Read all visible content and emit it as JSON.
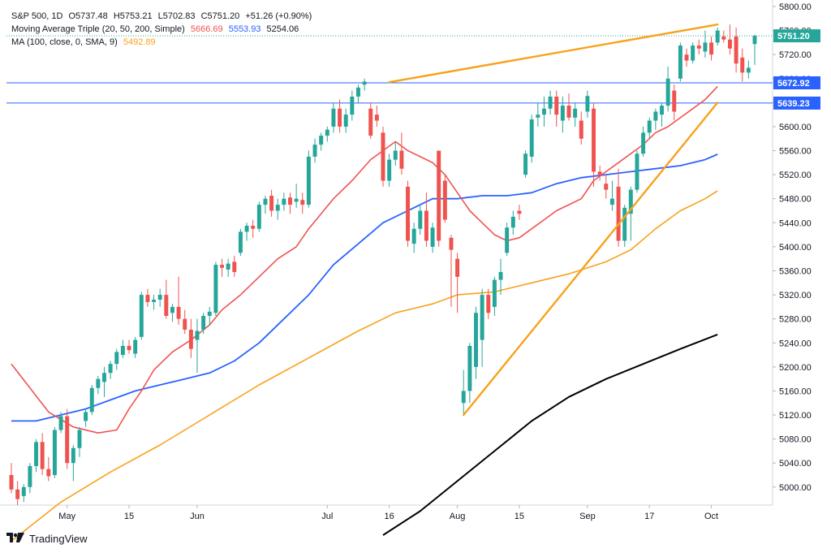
{
  "legend": {
    "symbol": "S&P 500, 1D",
    "open": "O5737.48",
    "high": "H5753.21",
    "low": "L5702.83",
    "close": "C5751.20",
    "change": "+51.26 (+0.90%)",
    "ma_triple_label": "Moving Average Triple (20, 50, 200, Simple)",
    "ma_triple_v1": "5666.69",
    "ma_triple_v2": "5553.93",
    "ma_triple_v3": "5254.06",
    "ma_label": "MA (100, close, 0, SMA, 9)",
    "ma_value": "5492.89"
  },
  "branding": {
    "text": "TradingView"
  },
  "colors": {
    "up": "#26a69a",
    "down": "#ef5350",
    "ma20": "#ef5350",
    "ma50": "#2962ff",
    "ma100": "#f7a21b",
    "ma200": "#000000",
    "trend": "#f7a21b",
    "hline": "#2962ff",
    "price_badge": "#26a69a",
    "level_badge": "#2962ff"
  },
  "chart_data": {
    "type": "candlestick",
    "ylim": [
      4970,
      5800
    ],
    "y_ticks": [
      "5800.00",
      "5760.00",
      "5720.00",
      "5680.00",
      "5640.00",
      "5600.00",
      "5560.00",
      "5520.00",
      "5480.00",
      "5440.00",
      "5400.00",
      "5360.00",
      "5320.00",
      "5280.00",
      "5240.00",
      "5200.00",
      "5160.00",
      "5120.00",
      "5080.00",
      "5040.00",
      "5000.00"
    ],
    "x_ticks": [
      {
        "label": "May",
        "index": 9
      },
      {
        "label": "15",
        "index": 19
      },
      {
        "label": "Jun",
        "index": 30
      },
      {
        "label": "Jul",
        "index": 51
      },
      {
        "label": "16",
        "index": 61
      },
      {
        "label": "Aug",
        "index": 72
      },
      {
        "label": "15",
        "index": 82
      },
      {
        "label": "Sep",
        "index": 93
      },
      {
        "label": "17",
        "index": 103
      },
      {
        "label": "Oct",
        "index": 113
      }
    ],
    "price_label": "5751.20",
    "levels": [
      {
        "value": 5672.92,
        "label": "5672.92"
      },
      {
        "value": 5639.23,
        "label": "5639.23"
      }
    ],
    "candles": [
      [
        5020,
        5040,
        4990,
        4996
      ],
      [
        4996,
        5010,
        4970,
        4980
      ],
      [
        4985,
        5005,
        4975,
        5000
      ],
      [
        5000,
        5040,
        4990,
        5035
      ],
      [
        5035,
        5080,
        5025,
        5075
      ],
      [
        5075,
        5090,
        5020,
        5030
      ],
      [
        5030,
        5050,
        5010,
        5018
      ],
      [
        5020,
        5100,
        5015,
        5095
      ],
      [
        5095,
        5125,
        5090,
        5118
      ],
      [
        5118,
        5130,
        5030,
        5040
      ],
      [
        5040,
        5070,
        5010,
        5065
      ],
      [
        5065,
        5100,
        5050,
        5095
      ],
      [
        5110,
        5130,
        5100,
        5125
      ],
      [
        5125,
        5170,
        5120,
        5165
      ],
      [
        5165,
        5185,
        5155,
        5180
      ],
      [
        5175,
        5200,
        5150,
        5190
      ],
      [
        5190,
        5210,
        5180,
        5205
      ],
      [
        5205,
        5230,
        5195,
        5225
      ],
      [
        5220,
        5245,
        5215,
        5235
      ],
      [
        5235,
        5245,
        5222,
        5228
      ],
      [
        5222,
        5250,
        5215,
        5245
      ],
      [
        5250,
        5325,
        5245,
        5320
      ],
      [
        5320,
        5330,
        5300,
        5308
      ],
      [
        5308,
        5320,
        5295,
        5312
      ],
      [
        5312,
        5330,
        5300,
        5320
      ],
      [
        5320,
        5345,
        5280,
        5285
      ],
      [
        5290,
        5305,
        5275,
        5300
      ],
      [
        5300,
        5350,
        5270,
        5280
      ],
      [
        5280,
        5295,
        5255,
        5262
      ],
      [
        5262,
        5280,
        5215,
        5230
      ],
      [
        5245,
        5280,
        5190,
        5260
      ],
      [
        5262,
        5290,
        5255,
        5285
      ],
      [
        5285,
        5300,
        5270,
        5292
      ],
      [
        5290,
        5375,
        5285,
        5370
      ],
      [
        5370,
        5380,
        5350,
        5365
      ],
      [
        5362,
        5380,
        5350,
        5372
      ],
      [
        5375,
        5385,
        5350,
        5358
      ],
      [
        5390,
        5430,
        5385,
        5425
      ],
      [
        5425,
        5440,
        5410,
        5435
      ],
      [
        5435,
        5445,
        5415,
        5430
      ],
      [
        5430,
        5475,
        5425,
        5470
      ],
      [
        5470,
        5485,
        5455,
        5480
      ],
      [
        5485,
        5495,
        5450,
        5460
      ],
      [
        5460,
        5480,
        5445,
        5470
      ],
      [
        5470,
        5490,
        5460,
        5480
      ],
      [
        5482,
        5490,
        5455,
        5470
      ],
      [
        5475,
        5505,
        5465,
        5480
      ],
      [
        5478,
        5490,
        5455,
        5470
      ],
      [
        5470,
        5560,
        5465,
        5550
      ],
      [
        5550,
        5580,
        5540,
        5570
      ],
      [
        5570,
        5590,
        5560,
        5585
      ],
      [
        5585,
        5600,
        5575,
        5595
      ],
      [
        5600,
        5640,
        5590,
        5630
      ],
      [
        5630,
        5645,
        5590,
        5600
      ],
      [
        5600,
        5630,
        5590,
        5620
      ],
      [
        5620,
        5660,
        5610,
        5650
      ],
      [
        5650,
        5670,
        5640,
        5665
      ],
      [
        5670,
        5680,
        5660,
        5675
      ],
      [
        5630,
        5640,
        5580,
        5585
      ],
      [
        5620,
        5635,
        5600,
        5610
      ],
      [
        5590,
        5600,
        5500,
        5510
      ],
      [
        5510,
        5555,
        5500,
        5545
      ],
      [
        5545,
        5575,
        5535,
        5560
      ],
      [
        5560,
        5590,
        5520,
        5530
      ],
      [
        5500,
        5510,
        5400,
        5410
      ],
      [
        5405,
        5440,
        5390,
        5430
      ],
      [
        5430,
        5470,
        5420,
        5460
      ],
      [
        5460,
        5490,
        5400,
        5410
      ],
      [
        5400,
        5440,
        5390,
        5432
      ],
      [
        5560,
        5560,
        5400,
        5410
      ],
      [
        5510,
        5520,
        5440,
        5445
      ],
      [
        5415,
        5420,
        5300,
        5395
      ],
      [
        5380,
        5390,
        5290,
        5350
      ],
      [
        5140,
        5195,
        5120,
        5160
      ],
      [
        5160,
        5240,
        5140,
        5235
      ],
      [
        5200,
        5300,
        5180,
        5290
      ],
      [
        5245,
        5330,
        5200,
        5320
      ],
      [
        5320,
        5330,
        5280,
        5290
      ],
      [
        5300,
        5350,
        5285,
        5345
      ],
      [
        5345,
        5380,
        5320,
        5358
      ],
      [
        5390,
        5440,
        5385,
        5432
      ],
      [
        5432,
        5460,
        5420,
        5450
      ],
      [
        5460,
        5470,
        5445,
        5455
      ],
      [
        5520,
        5560,
        5515,
        5555
      ],
      [
        5550,
        5620,
        5540,
        5612
      ],
      [
        5615,
        5640,
        5600,
        5620
      ],
      [
        5620,
        5650,
        5600,
        5630
      ],
      [
        5630,
        5660,
        5620,
        5650
      ],
      [
        5650,
        5660,
        5600,
        5620
      ],
      [
        5610,
        5650,
        5590,
        5635
      ],
      [
        5635,
        5655,
        5610,
        5615
      ],
      [
        5615,
        5640,
        5600,
        5630
      ],
      [
        5610,
        5625,
        5570,
        5580
      ],
      [
        5625,
        5660,
        5615,
        5651
      ],
      [
        5630,
        5640,
        5500,
        5525
      ],
      [
        5525,
        5535,
        5510,
        5520
      ],
      [
        5505,
        5520,
        5480,
        5495
      ],
      [
        5470,
        5510,
        5460,
        5480
      ],
      [
        5500,
        5530,
        5400,
        5410
      ],
      [
        5410,
        5470,
        5400,
        5465
      ],
      [
        5455,
        5500,
        5410,
        5495
      ],
      [
        5495,
        5560,
        5490,
        5555
      ],
      [
        5555,
        5600,
        5550,
        5590
      ],
      [
        5590,
        5615,
        5580,
        5610
      ],
      [
        5610,
        5630,
        5595,
        5625
      ],
      [
        5620,
        5640,
        5600,
        5635
      ],
      [
        5635,
        5700,
        5625,
        5680
      ],
      [
        5660,
        5670,
        5610,
        5625
      ],
      [
        5680,
        5740,
        5675,
        5735
      ],
      [
        5720,
        5730,
        5700,
        5710
      ],
      [
        5710,
        5740,
        5705,
        5735
      ],
      [
        5735,
        5745,
        5720,
        5730
      ],
      [
        5725,
        5760,
        5715,
        5740
      ],
      [
        5740,
        5750,
        5710,
        5720
      ],
      [
        5740,
        5765,
        5735,
        5760
      ],
      [
        5750,
        5760,
        5740,
        5745
      ],
      [
        5745,
        5770,
        5720,
        5730
      ],
      [
        5750,
        5765,
        5690,
        5705
      ],
      [
        5715,
        5730,
        5675,
        5690
      ],
      [
        5690,
        5710,
        5680,
        5698
      ],
      [
        5737.48,
        5753.21,
        5702.83,
        5751.2
      ]
    ],
    "ma20": [
      [
        0,
        5205
      ],
      [
        3,
        5165
      ],
      [
        6,
        5125
      ],
      [
        10,
        5100
      ],
      [
        14,
        5090
      ],
      [
        17,
        5095
      ],
      [
        19,
        5130
      ],
      [
        21,
        5160
      ],
      [
        23,
        5195
      ],
      [
        26,
        5225
      ],
      [
        29,
        5245
      ],
      [
        32,
        5270
      ],
      [
        34,
        5295
      ],
      [
        37,
        5320
      ],
      [
        40,
        5350
      ],
      [
        43,
        5380
      ],
      [
        46,
        5400
      ],
      [
        48,
        5430
      ],
      [
        50,
        5455
      ],
      [
        52,
        5480
      ],
      [
        55,
        5510
      ],
      [
        58,
        5545
      ],
      [
        60,
        5560
      ],
      [
        62,
        5575
      ],
      [
        64,
        5560
      ],
      [
        66,
        5550
      ],
      [
        68,
        5540
      ],
      [
        70,
        5520
      ],
      [
        72,
        5490
      ],
      [
        74,
        5460
      ],
      [
        76,
        5440
      ],
      [
        78,
        5420
      ],
      [
        80,
        5410
      ],
      [
        82,
        5415
      ],
      [
        84,
        5430
      ],
      [
        86,
        5445
      ],
      [
        88,
        5460
      ],
      [
        90,
        5470
      ],
      [
        92,
        5480
      ],
      [
        94,
        5510
      ],
      [
        96,
        5525
      ],
      [
        98,
        5540
      ],
      [
        100,
        5555
      ],
      [
        102,
        5570
      ],
      [
        104,
        5590
      ],
      [
        106,
        5600
      ],
      [
        108,
        5615
      ],
      [
        110,
        5630
      ],
      [
        112,
        5645
      ],
      [
        114,
        5667
      ]
    ],
    "ma50": [
      [
        0,
        5110
      ],
      [
        4,
        5110
      ],
      [
        8,
        5120
      ],
      [
        12,
        5130
      ],
      [
        16,
        5145
      ],
      [
        20,
        5160
      ],
      [
        24,
        5170
      ],
      [
        28,
        5180
      ],
      [
        32,
        5190
      ],
      [
        36,
        5210
      ],
      [
        40,
        5240
      ],
      [
        44,
        5280
      ],
      [
        48,
        5320
      ],
      [
        52,
        5370
      ],
      [
        56,
        5405
      ],
      [
        60,
        5440
      ],
      [
        64,
        5460
      ],
      [
        68,
        5480
      ],
      [
        72,
        5480
      ],
      [
        76,
        5485
      ],
      [
        80,
        5485
      ],
      [
        84,
        5490
      ],
      [
        88,
        5505
      ],
      [
        92,
        5515
      ],
      [
        96,
        5520
      ],
      [
        100,
        5525
      ],
      [
        104,
        5530
      ],
      [
        108,
        5535
      ],
      [
        112,
        5545
      ],
      [
        114,
        5554
      ]
    ],
    "ma100": [
      [
        0,
        4910
      ],
      [
        8,
        4975
      ],
      [
        16,
        5025
      ],
      [
        24,
        5070
      ],
      [
        32,
        5120
      ],
      [
        40,
        5170
      ],
      [
        48,
        5215
      ],
      [
        56,
        5260
      ],
      [
        62,
        5290
      ],
      [
        68,
        5305
      ],
      [
        72,
        5320
      ],
      [
        78,
        5325
      ],
      [
        84,
        5340
      ],
      [
        90,
        5355
      ],
      [
        96,
        5375
      ],
      [
        100,
        5395
      ],
      [
        104,
        5430
      ],
      [
        108,
        5460
      ],
      [
        112,
        5480
      ],
      [
        114,
        5493
      ]
    ],
    "ma200": [
      [
        60,
        4920
      ],
      [
        66,
        4960
      ],
      [
        72,
        5010
      ],
      [
        78,
        5060
      ],
      [
        84,
        5110
      ],
      [
        90,
        5150
      ],
      [
        96,
        5180
      ],
      [
        102,
        5205
      ],
      [
        108,
        5230
      ],
      [
        114,
        5254
      ]
    ],
    "trendlines": [
      {
        "from": [
          61,
          5674
        ],
        "to": [
          114,
          5770
        ]
      },
      {
        "from": [
          73,
          5120
        ],
        "to": [
          114,
          5640
        ]
      }
    ]
  }
}
